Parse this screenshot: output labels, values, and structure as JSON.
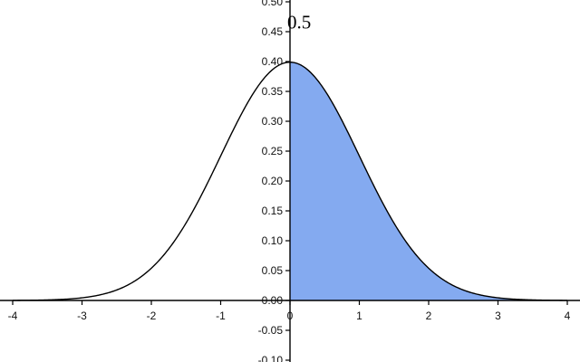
{
  "chart_data": {
    "type": "area",
    "title": "",
    "xlabel": "",
    "ylabel": "",
    "xlim": [
      -4,
      4
    ],
    "ylim": [
      -0.1,
      0.5
    ],
    "x_ticks": [
      "-4",
      "-3",
      "-2",
      "-1",
      "0",
      "1",
      "2",
      "3",
      "4"
    ],
    "y_ticks": [
      "-0.10",
      "-0.05",
      "0.00",
      "0.05",
      "0.10",
      "0.15",
      "0.20",
      "0.25",
      "0.30",
      "0.35",
      "0.40",
      "0.45",
      "0.50"
    ],
    "grid": false,
    "series": [
      {
        "curve": "standard normal density",
        "x": [
          -4.0,
          -3.5,
          -3.0,
          -2.5,
          -2.0,
          -1.5,
          -1.0,
          -0.5,
          0.0,
          0.5,
          1.0,
          1.5,
          2.0,
          2.5,
          3.0,
          3.5,
          4.0
        ],
        "values": [
          0.0001,
          0.0009,
          0.0044,
          0.0175,
          0.054,
          0.1295,
          0.242,
          0.3521,
          0.3989,
          0.3521,
          0.242,
          0.1295,
          0.054,
          0.0175,
          0.0044,
          0.0009,
          0.0001
        ],
        "color": "#000000"
      }
    ],
    "shaded_region": {
      "x_from": 0,
      "x_to": 4,
      "color": "#84aaf0"
    },
    "annotations": [
      {
        "text": "0.5",
        "x": 0.0,
        "y": 0.46
      }
    ]
  }
}
